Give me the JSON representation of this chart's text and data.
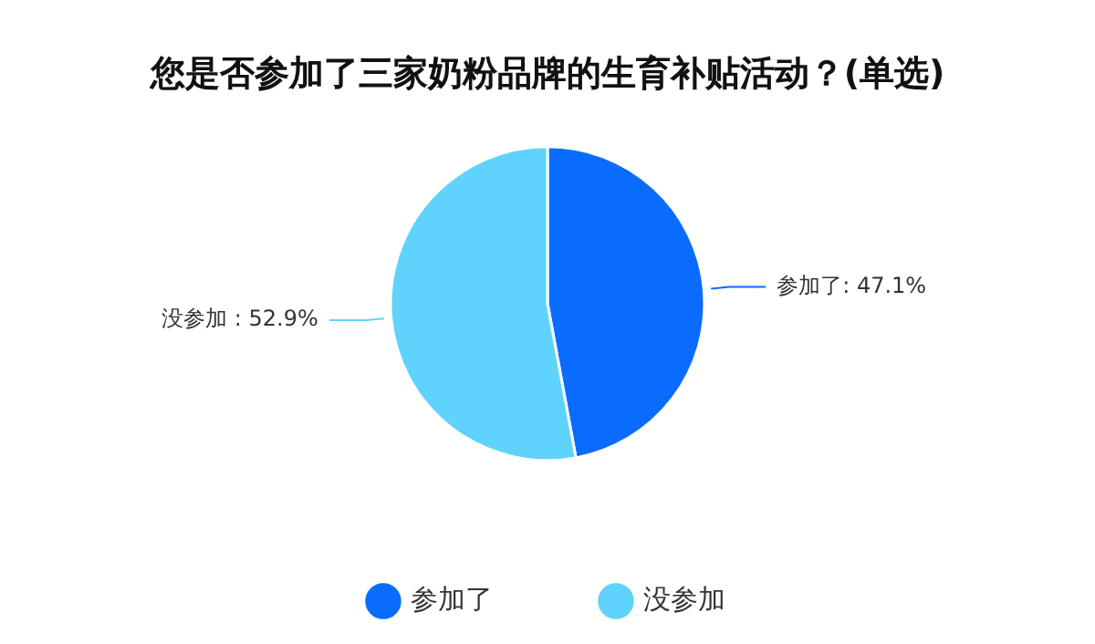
{
  "chart_data": {
    "type": "pie",
    "title": "您是否参加了三家奶粉品牌的生育补贴活动？(单选)",
    "categories": [
      "参加了",
      "没参加"
    ],
    "values": [
      47.1,
      52.9
    ],
    "colors": [
      "#0a6cff",
      "#5fd3fb"
    ],
    "value_labels": [
      "参加了: 47.1%",
      "没参加 : 52.9%"
    ],
    "legend": "bottom"
  }
}
